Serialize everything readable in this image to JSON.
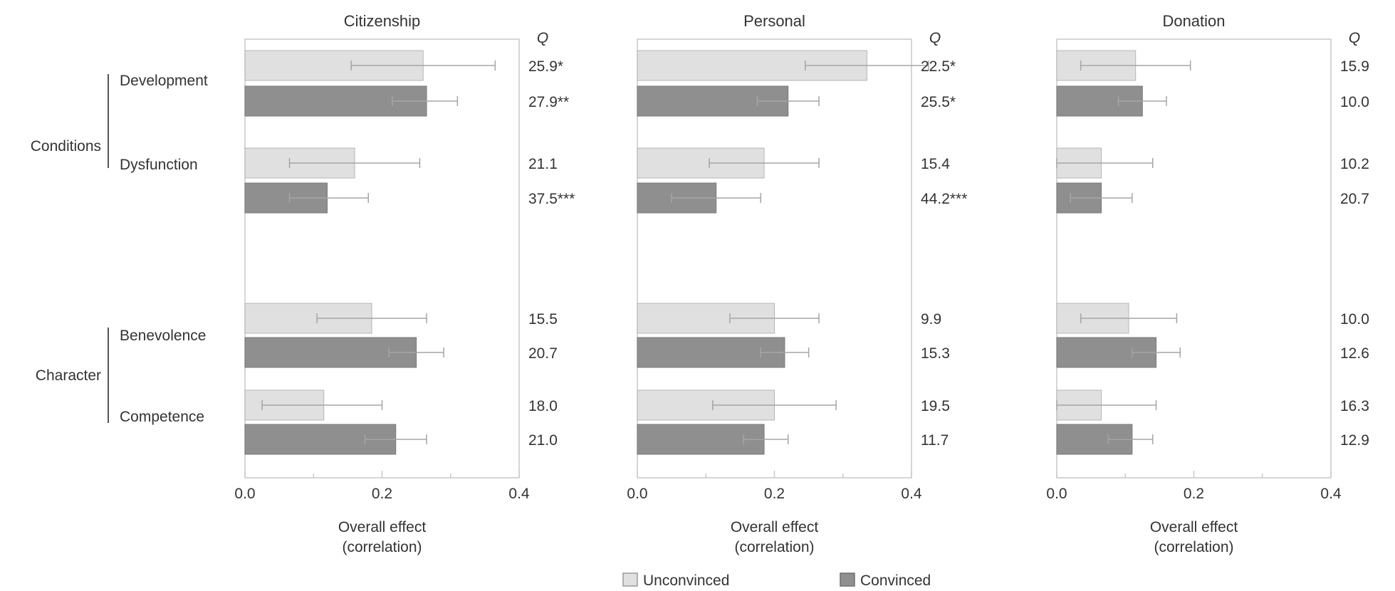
{
  "chart_data": [
    {
      "type": "bar",
      "title": "Citizenship",
      "q_header": "Q",
      "xlabel_line1": "Overall effect",
      "xlabel_line2": "(correlation)",
      "xlim": [
        0,
        0.4
      ],
      "xticks": [
        "0.0",
        "0.2",
        "0.4"
      ],
      "rows": [
        {
          "category": "Development",
          "series": "Unconvinced",
          "value": 0.26,
          "err_low": 0.155,
          "err_high": 0.365,
          "q": "25.9*"
        },
        {
          "category": "Development",
          "series": "Convinced",
          "value": 0.265,
          "err_low": 0.215,
          "err_high": 0.31,
          "q": "27.9**"
        },
        {
          "category": "Dysfunction",
          "series": "Unconvinced",
          "value": 0.16,
          "err_low": 0.065,
          "err_high": 0.255,
          "q": "21.1"
        },
        {
          "category": "Dysfunction",
          "series": "Convinced",
          "value": 0.12,
          "err_low": 0.065,
          "err_high": 0.18,
          "q": "37.5***"
        },
        {
          "category": "Benevolence",
          "series": "Unconvinced",
          "value": 0.185,
          "err_low": 0.105,
          "err_high": 0.265,
          "q": "15.5"
        },
        {
          "category": "Benevolence",
          "series": "Convinced",
          "value": 0.25,
          "err_low": 0.21,
          "err_high": 0.29,
          "q": "20.7"
        },
        {
          "category": "Competence",
          "series": "Unconvinced",
          "value": 0.115,
          "err_low": 0.025,
          "err_high": 0.2,
          "q": "18.0"
        },
        {
          "category": "Competence",
          "series": "Convinced",
          "value": 0.22,
          "err_low": 0.175,
          "err_high": 0.265,
          "q": "21.0"
        }
      ]
    },
    {
      "type": "bar",
      "title": "Personal",
      "q_header": "Q",
      "xlabel_line1": "Overall effect",
      "xlabel_line2": "(correlation)",
      "xlim": [
        0,
        0.4
      ],
      "xticks": [
        "0.0",
        "0.2",
        "0.4"
      ],
      "rows": [
        {
          "category": "Development",
          "series": "Unconvinced",
          "value": 0.335,
          "err_low": 0.245,
          "err_high": 0.425,
          "q": "22.5*"
        },
        {
          "category": "Development",
          "series": "Convinced",
          "value": 0.22,
          "err_low": 0.175,
          "err_high": 0.265,
          "q": "25.5*"
        },
        {
          "category": "Dysfunction",
          "series": "Unconvinced",
          "value": 0.185,
          "err_low": 0.105,
          "err_high": 0.265,
          "q": "15.4"
        },
        {
          "category": "Dysfunction",
          "series": "Convinced",
          "value": 0.115,
          "err_low": 0.05,
          "err_high": 0.18,
          "q": "44.2***"
        },
        {
          "category": "Benevolence",
          "series": "Unconvinced",
          "value": 0.2,
          "err_low": 0.135,
          "err_high": 0.265,
          "q": "9.9"
        },
        {
          "category": "Benevolence",
          "series": "Convinced",
          "value": 0.215,
          "err_low": 0.18,
          "err_high": 0.25,
          "q": "15.3"
        },
        {
          "category": "Competence",
          "series": "Unconvinced",
          "value": 0.2,
          "err_low": 0.11,
          "err_high": 0.29,
          "q": "19.5"
        },
        {
          "category": "Competence",
          "series": "Convinced",
          "value": 0.185,
          "err_low": 0.155,
          "err_high": 0.22,
          "q": "11.7"
        }
      ]
    },
    {
      "type": "bar",
      "title": "Donation",
      "q_header": "Q",
      "xlabel_line1": "Overall effect",
      "xlabel_line2": "(correlation)",
      "xlim": [
        0,
        0.4
      ],
      "xticks": [
        "0.0",
        "0.2",
        "0.4"
      ],
      "rows": [
        {
          "category": "Development",
          "series": "Unconvinced",
          "value": 0.115,
          "err_low": 0.035,
          "err_high": 0.195,
          "q": "15.9"
        },
        {
          "category": "Development",
          "series": "Convinced",
          "value": 0.125,
          "err_low": 0.09,
          "err_high": 0.16,
          "q": "10.0"
        },
        {
          "category": "Dysfunction",
          "series": "Unconvinced",
          "value": 0.065,
          "err_low": -0.01,
          "err_high": 0.14,
          "q": "10.2"
        },
        {
          "category": "Dysfunction",
          "series": "Convinced",
          "value": 0.065,
          "err_low": 0.02,
          "err_high": 0.11,
          "q": "20.7"
        },
        {
          "category": "Benevolence",
          "series": "Unconvinced",
          "value": 0.105,
          "err_low": 0.035,
          "err_high": 0.175,
          "q": "10.0"
        },
        {
          "category": "Benevolence",
          "series": "Convinced",
          "value": 0.145,
          "err_low": 0.11,
          "err_high": 0.18,
          "q": "12.6"
        },
        {
          "category": "Competence",
          "series": "Unconvinced",
          "value": 0.065,
          "err_low": -0.015,
          "err_high": 0.145,
          "q": "16.3"
        },
        {
          "category": "Competence",
          "series": "Convinced",
          "value": 0.11,
          "err_low": 0.075,
          "err_high": 0.14,
          "q": "12.9"
        }
      ]
    }
  ],
  "groups": [
    {
      "label": "Conditions",
      "categories": [
        "Development",
        "Dysfunction"
      ]
    },
    {
      "label": "Character",
      "categories": [
        "Benevolence",
        "Competence"
      ]
    }
  ],
  "legend": [
    {
      "label": "Unconvinced",
      "color": "#e0e0e0"
    },
    {
      "label": "Convinced",
      "color": "#8f8f8f"
    }
  ],
  "colors": {
    "unconvinced": "#e0e0e0",
    "convinced": "#8f8f8f",
    "frame": "#c9c9c9",
    "text": "#333333"
  }
}
